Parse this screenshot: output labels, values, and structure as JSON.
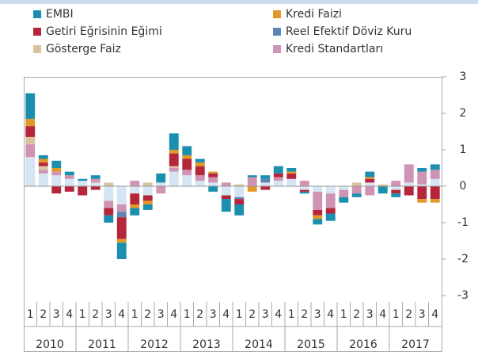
{
  "chart_data": {
    "type": "stacked-bar",
    "categories": [
      "1",
      "2",
      "3",
      "4",
      "1",
      "2",
      "3",
      "4",
      "1",
      "2",
      "3",
      "4",
      "1",
      "2",
      "3",
      "4",
      "1",
      "2",
      "3",
      "4",
      "1",
      "2",
      "3",
      "4",
      "1",
      "2",
      "3",
      "4",
      "1",
      "2",
      "3",
      "4"
    ],
    "years": [
      "2010",
      "2011",
      "2012",
      "2013",
      "2014",
      "2015",
      "2016",
      "2017"
    ],
    "series": [
      {
        "color": "#d6e5f3",
        "values": [
          0.8,
          0.35,
          0.3,
          0.2,
          0.15,
          0.1,
          -0.4,
          -0.5,
          -0.2,
          -0.25,
          0.1,
          0.4,
          0.3,
          0.15,
          0.1,
          -0.25,
          -0.3,
          0,
          0.1,
          0.15,
          0.2,
          -0.1,
          -0.15,
          -0.2,
          -0.1,
          0,
          0.1,
          0,
          -0.1,
          0.1,
          0.05,
          0.2
        ]
      },
      {
        "name": "Kredi Standartları",
        "color": "#cf93b4",
        "values": [
          0.35,
          0.1,
          0.1,
          0.1,
          0,
          0.1,
          -0.2,
          -0.2,
          0.15,
          0,
          -0.2,
          0.1,
          0.15,
          0.15,
          0.15,
          0.1,
          0,
          0.25,
          0,
          0.1,
          0,
          0.15,
          -0.5,
          -0.4,
          -0.2,
          -0.2,
          -0.25,
          0,
          0.15,
          0.5,
          0.35,
          0.25
        ]
      },
      {
        "name": "Gösterge Faiz",
        "color": "#d9c3a0",
        "values": [
          0.2,
          0.1,
          0,
          0,
          0,
          0,
          0.1,
          0,
          0,
          0.1,
          0,
          0.05,
          0,
          0,
          0,
          0,
          0.05,
          0,
          0,
          0,
          0,
          0,
          0,
          0,
          0,
          0.1,
          0,
          0.05,
          0,
          0,
          0,
          0
        ]
      },
      {
        "name": "Reel Efektif Döviz Kuru",
        "color": "#5b86b5",
        "values": [
          0,
          0,
          0,
          0,
          0,
          0,
          0,
          -0.15,
          0,
          0,
          0,
          0,
          0,
          0,
          0,
          0,
          -0.05,
          0,
          0.1,
          0,
          0,
          0,
          0,
          0,
          0,
          0,
          0,
          0,
          0,
          0,
          0,
          0
        ]
      },
      {
        "name": "Getiri Eğrisinin Eğimi",
        "color": "#b5263b",
        "values": [
          0.3,
          0.1,
          -0.2,
          -0.15,
          -0.25,
          -0.1,
          -0.2,
          -0.6,
          -0.3,
          -0.15,
          0,
          0.35,
          0.3,
          0.25,
          0.1,
          -0.1,
          -0.15,
          0,
          -0.1,
          0.1,
          0.15,
          -0.05,
          -0.15,
          -0.15,
          0,
          0,
          0.1,
          0,
          -0.1,
          -0.25,
          -0.35,
          -0.35
        ]
      },
      {
        "name": "Kredi Faizi",
        "color": "#e09a2a",
        "values": [
          0.2,
          0.1,
          0.1,
          0,
          0,
          0,
          0,
          -0.1,
          -0.1,
          -0.1,
          0,
          0.1,
          0.1,
          0.1,
          0.05,
          0,
          0,
          -0.15,
          0,
          0,
          0.05,
          0,
          -0.1,
          0,
          0,
          0,
          0.05,
          0,
          0,
          0,
          -0.1,
          -0.1
        ]
      },
      {
        "name": "EMBI",
        "color": "#1a8fb0",
        "values": [
          0.7,
          0.1,
          0.2,
          0.1,
          0.05,
          0.1,
          -0.2,
          -0.45,
          -0.2,
          -0.15,
          0.25,
          0.45,
          0.25,
          0.1,
          -0.15,
          -0.35,
          -0.3,
          0.05,
          0.1,
          0.2,
          0.1,
          -0.05,
          -0.15,
          -0.2,
          -0.15,
          -0.1,
          0.15,
          -0.2,
          -0.1,
          0,
          0.1,
          0.15
        ]
      }
    ],
    "legend_order": [
      6,
      5,
      4,
      3,
      2,
      1
    ],
    "ylim": [
      -3,
      3
    ],
    "yticks": [
      -3,
      -2,
      -1,
      0,
      1,
      2,
      3
    ],
    "grid": false
  }
}
